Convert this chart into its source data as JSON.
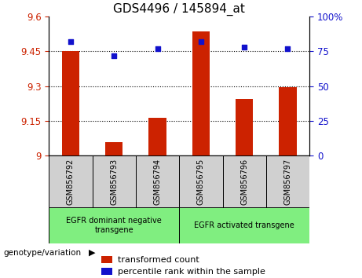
{
  "title": "GDS4496 / 145894_at",
  "categories": [
    "GSM856792",
    "GSM856793",
    "GSM856794",
    "GSM856795",
    "GSM856796",
    "GSM856797"
  ],
  "bar_values": [
    9.45,
    9.06,
    9.165,
    9.535,
    9.245,
    9.295
  ],
  "scatter_values": [
    82,
    72,
    77,
    82,
    78,
    77
  ],
  "ylim_left": [
    9.0,
    9.6
  ],
  "ylim_right": [
    0,
    100
  ],
  "yticks_left": [
    9.0,
    9.15,
    9.3,
    9.45,
    9.6
  ],
  "yticks_right": [
    0,
    25,
    50,
    75,
    100
  ],
  "grid_values": [
    9.15,
    9.3,
    9.45
  ],
  "bar_color": "#cc2200",
  "scatter_color": "#1111cc",
  "bar_base": 9.0,
  "group1_label": "EGFR dominant negative\ntransgene",
  "group2_label": "EGFR activated transgene",
  "group1_indices": [
    0,
    1,
    2
  ],
  "group2_indices": [
    3,
    4,
    5
  ],
  "legend1_label": "transformed count",
  "legend2_label": "percentile rank within the sample",
  "genotype_label": "genotype/variation",
  "arrow_label": "▶",
  "bg_color_groups": "#80ee80",
  "bg_color_cells": "#d0d0d0",
  "title_fontsize": 11,
  "tick_fontsize": 8.5,
  "legend_fontsize": 8
}
